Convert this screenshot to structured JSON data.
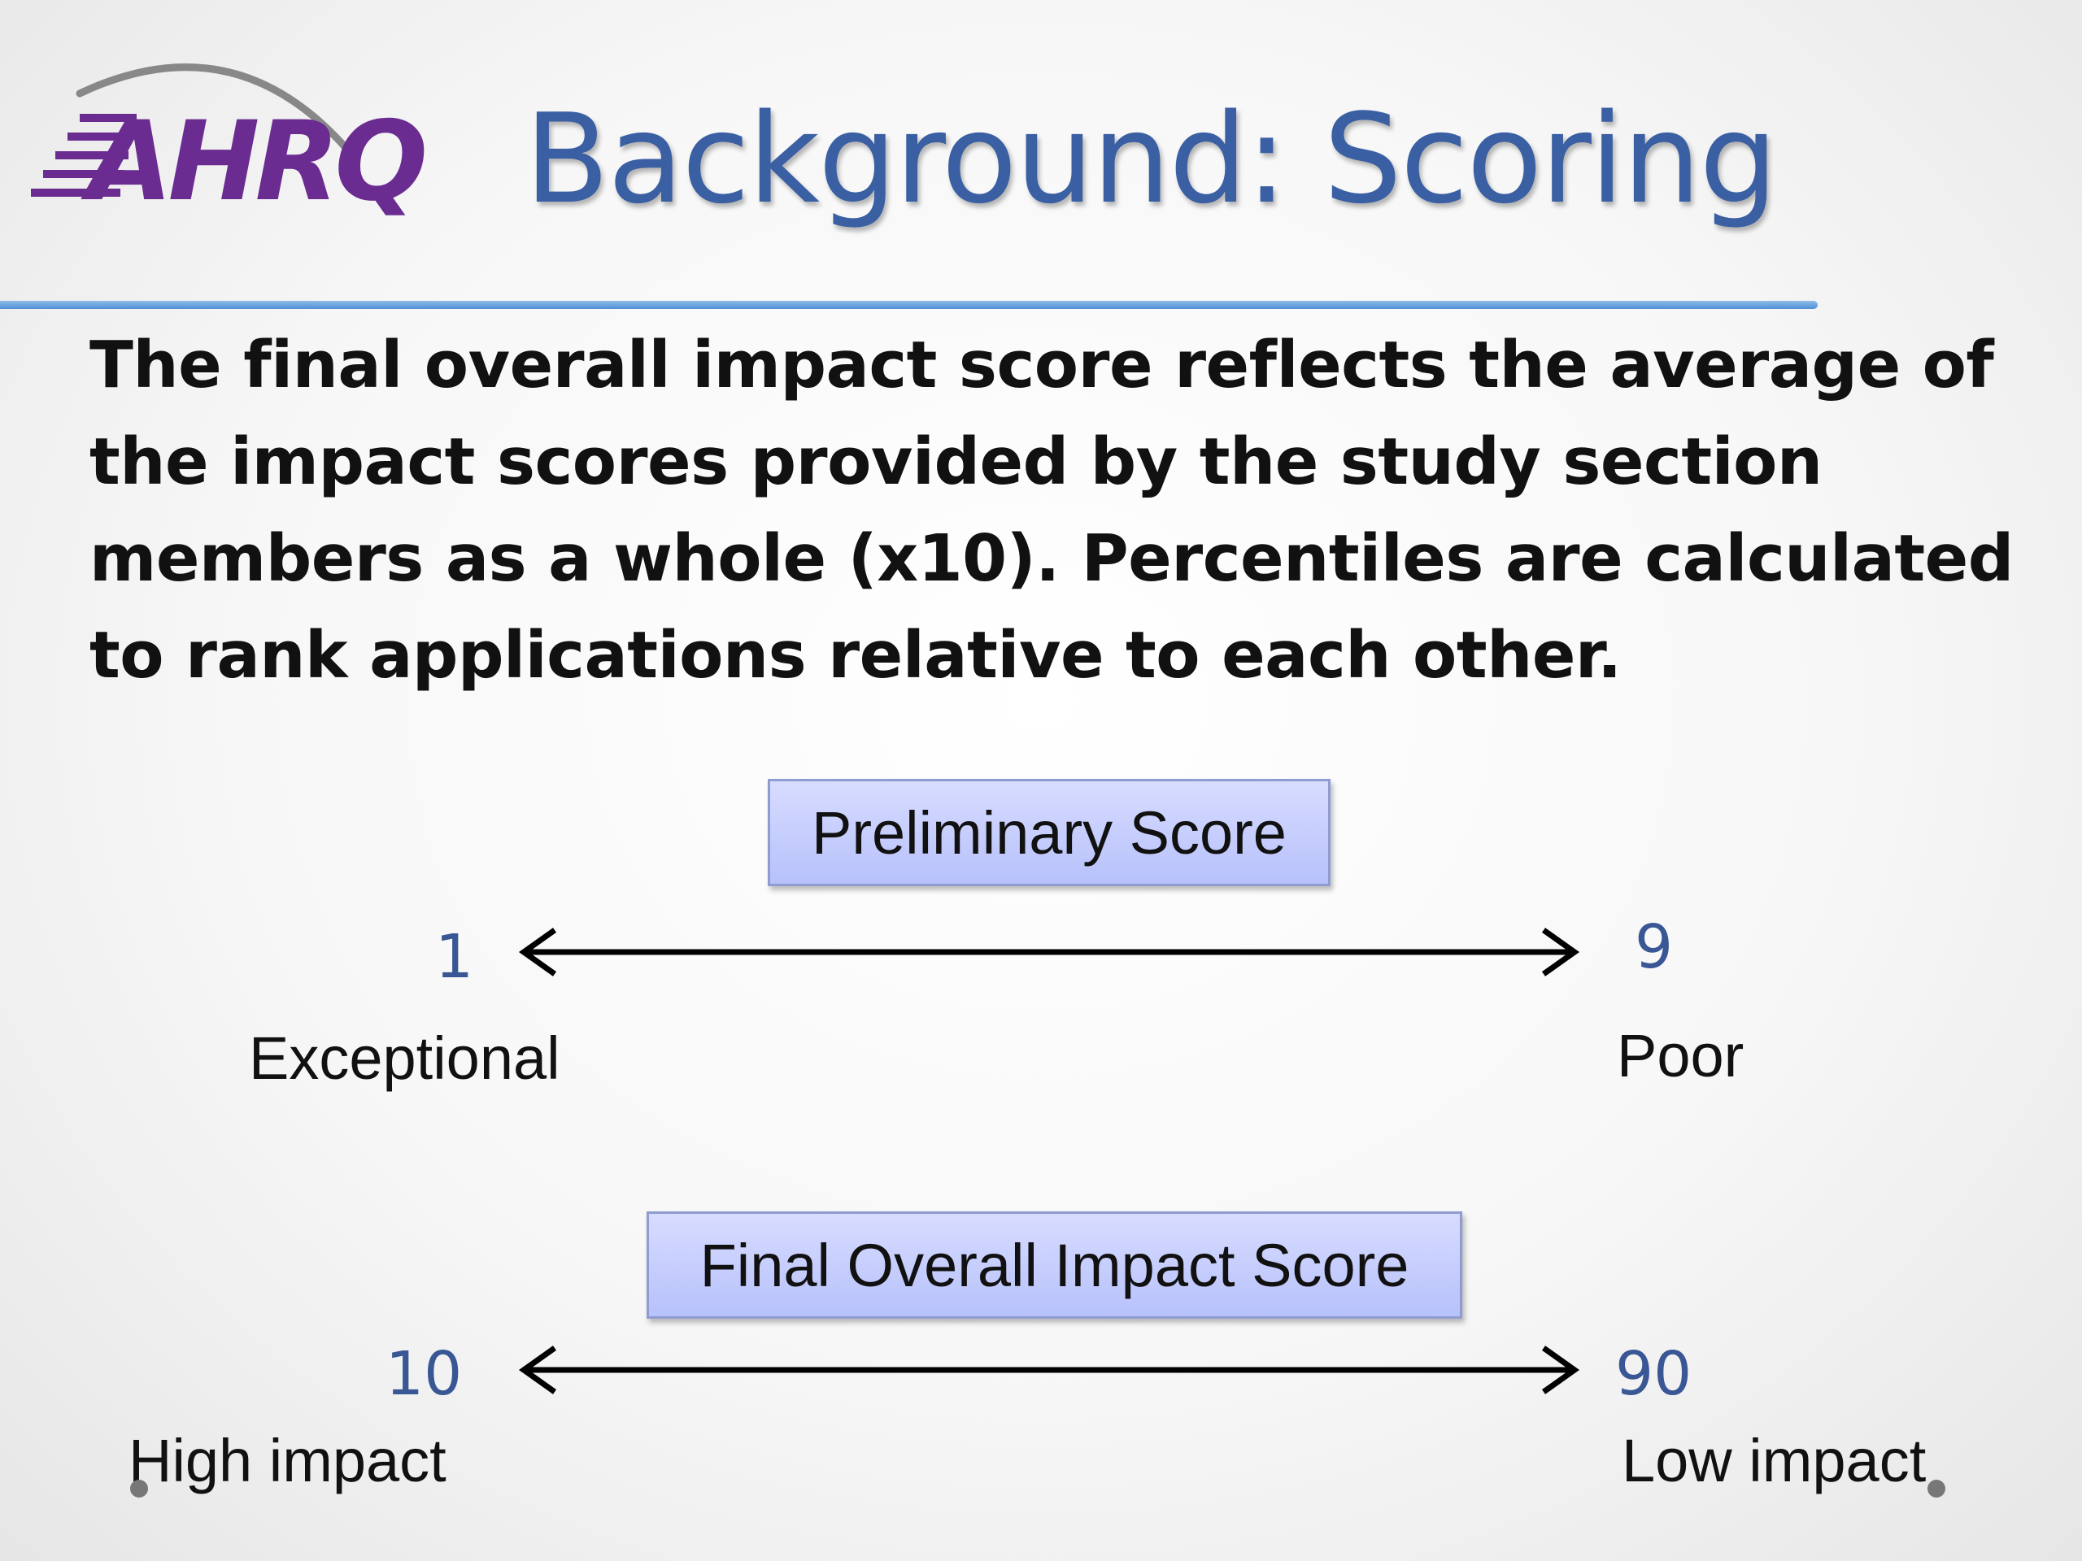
{
  "logo": {
    "text": "AHRQ",
    "brand_color": "#6b2c91",
    "swoosh_color": "#888888"
  },
  "title": "Background: Scoring",
  "intro": "The final overall impact score reflects the average of the impact scores provided by the study section members as a whole (x10). Percentiles are calculated to rank applications relative to each other.",
  "scales": {
    "preliminary": {
      "label": "Preliminary Score",
      "min": "1",
      "max": "9",
      "min_label": "Exceptional",
      "max_label": "Poor"
    },
    "final": {
      "label": "Final Overall Impact Score",
      "min": "10",
      "max": "90",
      "min_label": "High impact",
      "max_label": "Low impact"
    }
  },
  "colors": {
    "title": "#3a5fa3",
    "numbers": "#3a5795",
    "box_fill": "#c4ccfd",
    "rule": "#4f8fd6"
  }
}
